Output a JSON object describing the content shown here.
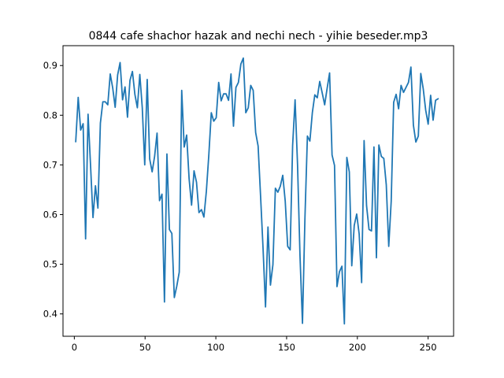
{
  "chart_data": {
    "type": "line",
    "title": "0844 cafe shachor hazak and nechi nech - yihie beseder.mp3",
    "xlabel": "",
    "ylabel": "",
    "xlim": [
      -8,
      268
    ],
    "ylim": [
      0.355,
      0.94
    ],
    "grid": false,
    "x_ticks": [
      0,
      50,
      100,
      150,
      200,
      250
    ],
    "y_ticks": [
      0.4,
      0.5,
      0.6,
      0.7,
      0.8,
      0.9
    ],
    "x_tick_labels": [
      "0",
      "50",
      "100",
      "150",
      "200",
      "250"
    ],
    "y_tick_labels": [
      "0.4",
      "0.5",
      "0.6",
      "0.7",
      "0.8",
      "0.9"
    ],
    "series": [
      {
        "color": "#1f77b4",
        "values": [
          0.747,
          0.836,
          0.77,
          0.783,
          0.551,
          0.802,
          0.7,
          0.594,
          0.658,
          0.613,
          0.784,
          0.827,
          0.827,
          0.821,
          0.883,
          0.855,
          0.816,
          0.881,
          0.906,
          0.831,
          0.857,
          0.796,
          0.87,
          0.888,
          0.842,
          0.815,
          0.882,
          0.815,
          0.7,
          0.872,
          0.712,
          0.686,
          0.717,
          0.764,
          0.628,
          0.641,
          0.424,
          0.722,
          0.57,
          0.562,
          0.433,
          0.456,
          0.484,
          0.85,
          0.736,
          0.76,
          0.672,
          0.619,
          0.688,
          0.665,
          0.604,
          0.61,
          0.595,
          0.647,
          0.72,
          0.805,
          0.788,
          0.795,
          0.866,
          0.829,
          0.843,
          0.843,
          0.83,
          0.883,
          0.778,
          0.856,
          0.866,
          0.903,
          0.915,
          0.805,
          0.815,
          0.86,
          0.85,
          0.765,
          0.738,
          0.637,
          0.532,
          0.414,
          0.575,
          0.458,
          0.499,
          0.653,
          0.645,
          0.657,
          0.679,
          0.627,
          0.536,
          0.529,
          0.739,
          0.831,
          0.7,
          0.516,
          0.381,
          0.593,
          0.758,
          0.748,
          0.805,
          0.841,
          0.835,
          0.868,
          0.845,
          0.821,
          0.854,
          0.885,
          0.72,
          0.699,
          0.455,
          0.485,
          0.496,
          0.38,
          0.715,
          0.686,
          0.497,
          0.578,
          0.601,
          0.561,
          0.463,
          0.749,
          0.618,
          0.57,
          0.567,
          0.736,
          0.513,
          0.74,
          0.717,
          0.713,
          0.66,
          0.536,
          0.627,
          0.826,
          0.842,
          0.813,
          0.86,
          0.846,
          0.856,
          0.866,
          0.897,
          0.78,
          0.746,
          0.758,
          0.884,
          0.853,
          0.81,
          0.782,
          0.84,
          0.79,
          0.83,
          0.833
        ]
      }
    ]
  }
}
